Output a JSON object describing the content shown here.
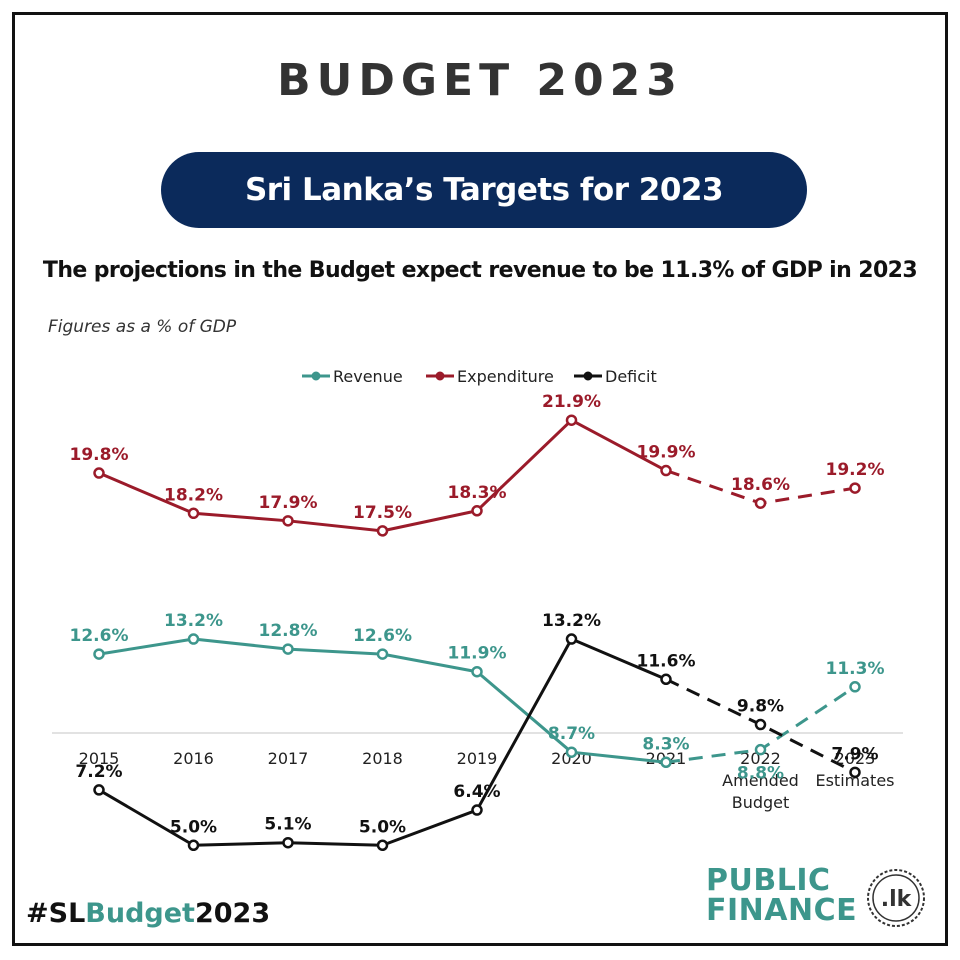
{
  "header": {
    "title": "BUDGET 2023",
    "pill": "Sri Lanka’s Targets for 2023",
    "headline": "The projections in the Budget expect revenue to be 11.3% of GDP in 2023",
    "note": "Figures as a % of GDP"
  },
  "chart_data": {
    "type": "line",
    "title": "",
    "xlabel": "",
    "ylabel": "",
    "categories": [
      "2015",
      "2016",
      "2017",
      "2018",
      "2019",
      "2020",
      "2021",
      "2022 Amended Budget",
      "2023 Estimates"
    ],
    "category_lines": [
      [
        "2015"
      ],
      [
        "2016"
      ],
      [
        "2017"
      ],
      [
        "2018"
      ],
      [
        "2019"
      ],
      [
        "2020"
      ],
      [
        "2021"
      ],
      [
        "2022",
        "Amended",
        "Budget"
      ],
      [
        "2023",
        "Estimates"
      ]
    ],
    "ylim": [
      0,
      24
    ],
    "grid": false,
    "legend_position": "top-center",
    "projected_from_index": 6,
    "projection_style": "dashed",
    "series": [
      {
        "name": "Revenue",
        "color": "#3d968c",
        "values": [
          12.6,
          13.2,
          12.8,
          12.6,
          11.9,
          8.7,
          8.3,
          8.8,
          11.3
        ],
        "labels": [
          "12.6%",
          "13.2%",
          "12.8%",
          "12.6%",
          "11.9%",
          "8.7%",
          "8.3%",
          "8.8%",
          "11.3%"
        ],
        "label_positions": [
          "above",
          "above",
          "above",
          "above",
          "above",
          "above",
          "above",
          "below",
          "above"
        ]
      },
      {
        "name": "Expenditure",
        "color": "#9b1b2a",
        "values": [
          19.8,
          18.2,
          17.9,
          17.5,
          18.3,
          21.9,
          19.9,
          18.6,
          19.2
        ],
        "labels": [
          "19.8%",
          "18.2%",
          "17.9%",
          "17.5%",
          "18.3%",
          "21.9%",
          "19.9%",
          "18.6%",
          "19.2%"
        ],
        "label_positions": [
          "above",
          "above",
          "above",
          "above",
          "above",
          "above",
          "above",
          "above",
          "above"
        ]
      },
      {
        "name": "Deficit",
        "color": "#111111",
        "values": [
          7.2,
          5.0,
          5.1,
          5.0,
          6.4,
          13.2,
          11.6,
          9.8,
          7.9
        ],
        "labels": [
          "7.2%",
          "5.0%",
          "5.1%",
          "5.0%",
          "6.4%",
          "13.2%",
          "11.6%",
          "9.8%",
          "7.9%"
        ],
        "label_positions": [
          "above",
          "above",
          "above",
          "above",
          "above",
          "above",
          "above",
          "above",
          "above"
        ]
      }
    ]
  },
  "footer": {
    "hashtag_prefix": "#SL",
    "hashtag_accent": "Budget",
    "hashtag_suffix": "2023",
    "logo_line1": "PUBLIC",
    "logo_line2": "FINANCE",
    "logo_seal": ".lk",
    "logo_icon": "public-finance-seal-icon"
  }
}
